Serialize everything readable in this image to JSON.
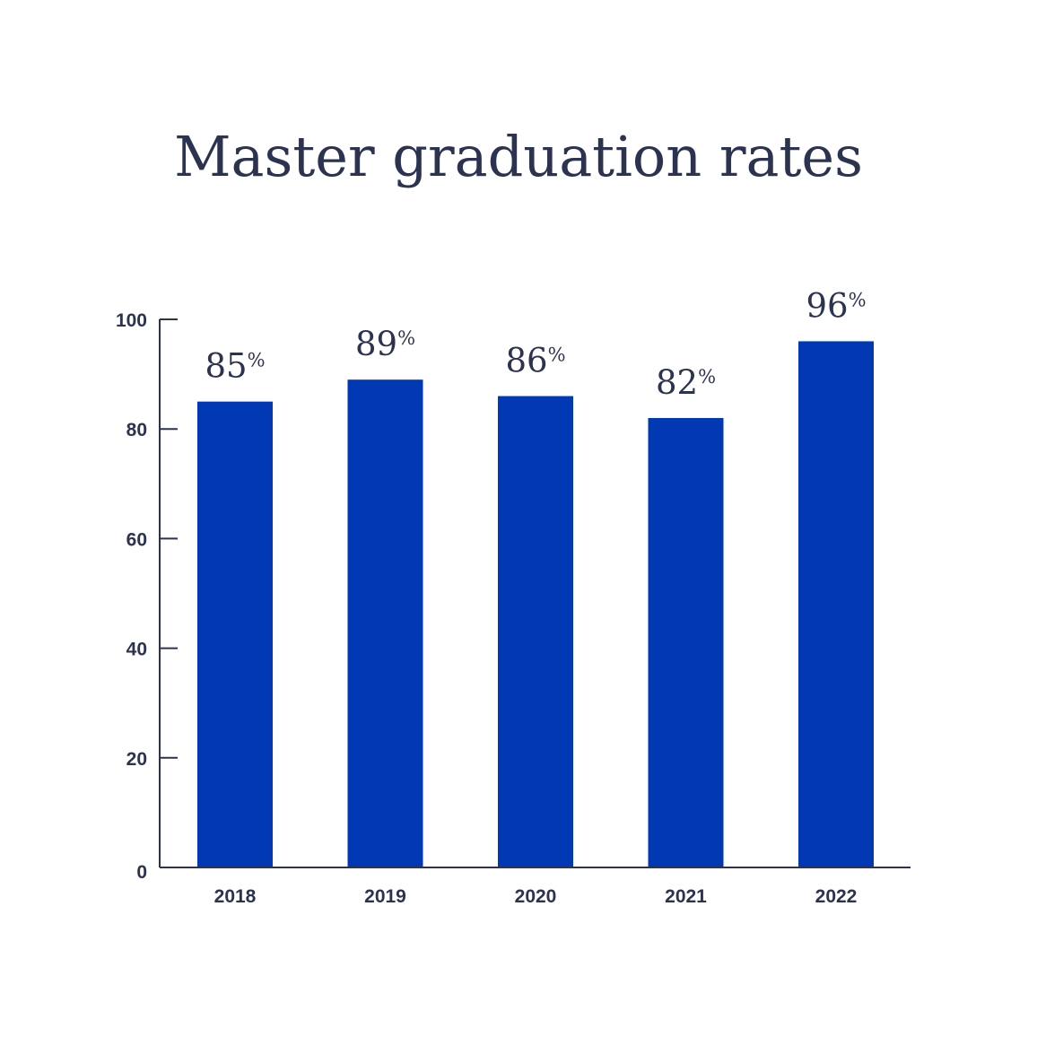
{
  "chart_data": {
    "type": "bar",
    "title": "Master graduation rates",
    "xlabel": "",
    "ylabel": "",
    "categories": [
      "2018",
      "2019",
      "2020",
      "2021",
      "2022"
    ],
    "values": [
      85,
      89,
      86,
      82,
      96
    ],
    "value_suffix": "%",
    "ylim": [
      0,
      100
    ],
    "yticks": [
      "0",
      "20",
      "40",
      "60",
      "80",
      "100"
    ],
    "grid": false,
    "legend": "none",
    "bar_color": "#0039b3",
    "text_color": "#2b3350"
  }
}
